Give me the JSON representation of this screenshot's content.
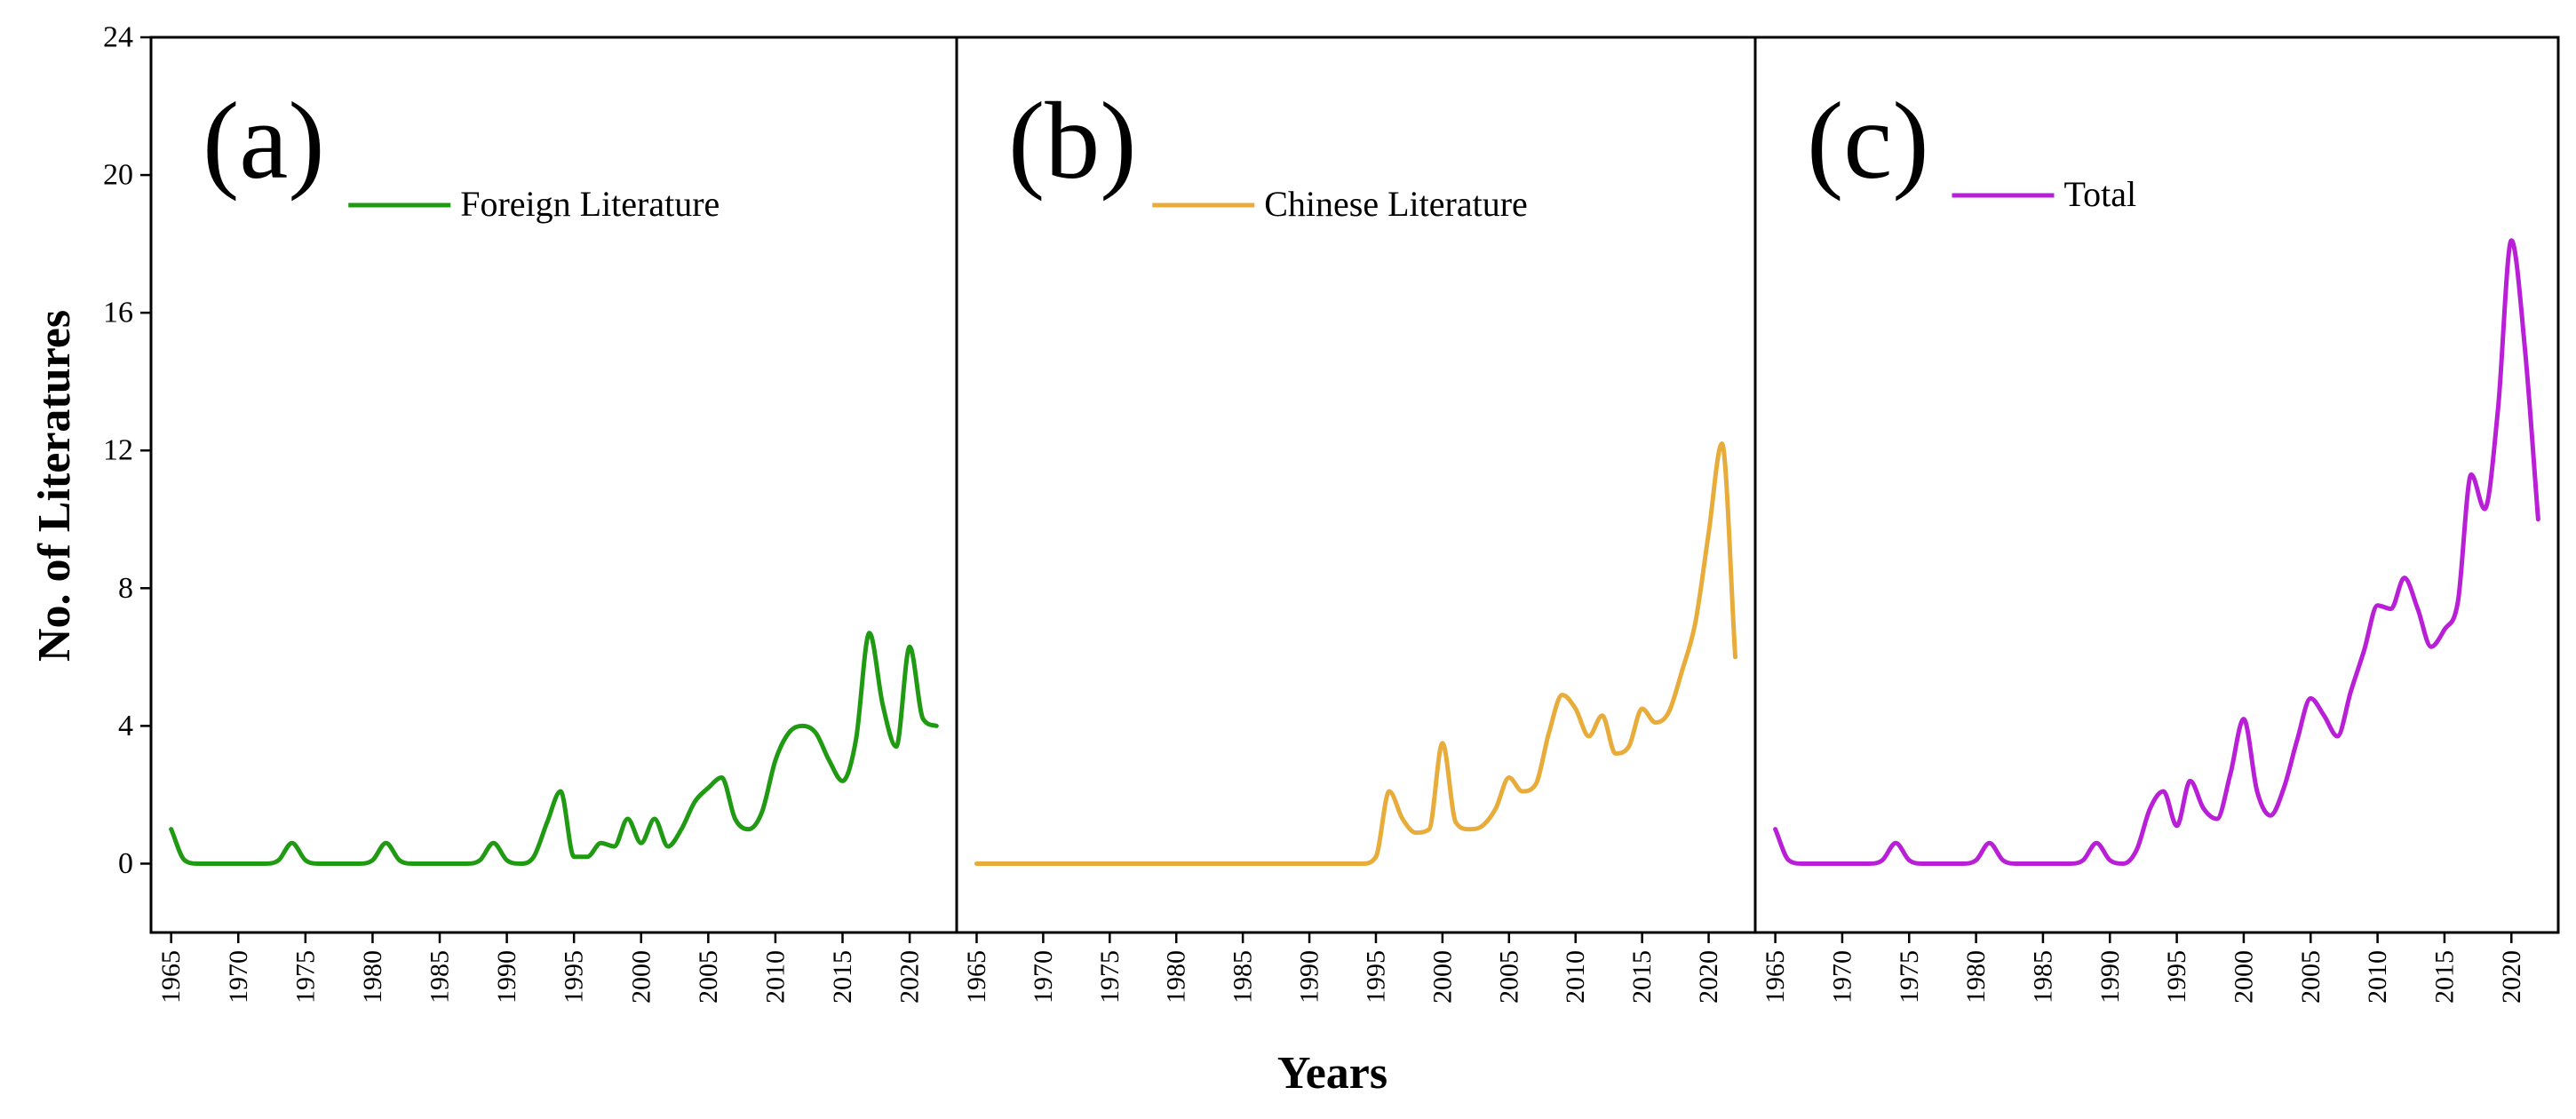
{
  "chart_data": {
    "type": "line",
    "xlabel": "Years",
    "ylabel": "No. of Literatures",
    "ylim": [
      -2,
      24
    ],
    "xlim": [
      1963.5,
      1966.5
    ],
    "yticks": [
      0,
      4,
      8,
      12,
      16,
      20,
      24
    ],
    "xticks": [
      1965,
      1970,
      1975,
      1980,
      1985,
      1990,
      1995,
      2000,
      2005,
      2010,
      2015,
      2020
    ],
    "grid": false,
    "legend_position": "top-center",
    "colors": {
      "a": "#1f9a12",
      "b": "#e8ac3a",
      "c": "#b81fd6"
    },
    "panels": [
      {
        "tag": "(a)",
        "series": [
          {
            "name": "Foreign Literature",
            "x": [
              1965,
              1966,
              1967,
              1968,
              1969,
              1970,
              1971,
              1972,
              1973,
              1974,
              1975,
              1976,
              1977,
              1978,
              1979,
              1980,
              1981,
              1982,
              1983,
              1984,
              1985,
              1986,
              1987,
              1988,
              1989,
              1990,
              1991,
              1992,
              1993,
              1994,
              1995,
              1996,
              1997,
              1998,
              1999,
              2000,
              2001,
              2002,
              2003,
              2004,
              2005,
              2006,
              2007,
              2008,
              2009,
              2010,
              2011,
              2012,
              2013,
              2014,
              2015,
              2016,
              2017,
              2018,
              2019,
              2020,
              2021,
              2022
            ],
            "values": [
              1,
              0.1,
              0,
              0,
              0,
              0,
              0,
              0,
              0.1,
              0.6,
              0.1,
              0,
              0,
              0,
              0,
              0.1,
              0.6,
              0.1,
              0,
              0,
              0,
              0,
              0,
              0.1,
              0.6,
              0.1,
              0,
              0.2,
              1.2,
              2.1,
              0.2,
              0.2,
              0.6,
              0.5,
              1.3,
              0.6,
              1.3,
              0.5,
              1,
              1.8,
              2.2,
              2.5,
              1.3,
              1,
              1.5,
              3,
              3.8,
              4,
              3.8,
              3,
              2.4,
              3.6,
              6.7,
              4.6,
              3.4,
              6.3,
              4.2,
              4
            ]
          }
        ]
      },
      {
        "tag": "(b)",
        "series": [
          {
            "name": "Chinese Literature",
            "x": [
              1965,
              1970,
              1975,
              1980,
              1985,
              1990,
              1994,
              1995,
              1996,
              1997,
              1998,
              1999,
              2000,
              2001,
              2002,
              2003,
              2004,
              2005,
              2006,
              2007,
              2008,
              2009,
              2010,
              2011,
              2012,
              2013,
              2014,
              2015,
              2016,
              2017,
              2018,
              2019,
              2020,
              2021,
              2022
            ],
            "values": [
              0,
              0,
              0,
              0,
              0,
              0,
              0,
              0.2,
              2.1,
              1.3,
              0.9,
              1,
              3.5,
              1.2,
              1,
              1.1,
              1.6,
              2.5,
              2.1,
              2.3,
              3.8,
              4.9,
              4.5,
              3.7,
              4.3,
              3.2,
              3.4,
              4.5,
              4.1,
              4.4,
              5.6,
              7,
              9.6,
              12.2,
              6
            ]
          }
        ]
      },
      {
        "tag": "(c)",
        "series": [
          {
            "name": "Total",
            "x": [
              1965,
              1966,
              1967,
              1968,
              1969,
              1970,
              1971,
              1972,
              1973,
              1974,
              1975,
              1976,
              1977,
              1978,
              1979,
              1980,
              1981,
              1982,
              1983,
              1984,
              1985,
              1986,
              1987,
              1988,
              1989,
              1990,
              1991,
              1992,
              1993,
              1994,
              1995,
              1996,
              1997,
              1998,
              1999,
              2000,
              2001,
              2002,
              2003,
              2004,
              2005,
              2006,
              2007,
              2008,
              2009,
              2010,
              2011,
              2012,
              2013,
              2014,
              2015,
              2016,
              2017,
              2018,
              2019,
              2020,
              2021,
              2022
            ],
            "values": [
              1,
              0.1,
              0,
              0,
              0,
              0,
              0,
              0,
              0.1,
              0.6,
              0.1,
              0,
              0,
              0,
              0,
              0.1,
              0.6,
              0.1,
              0,
              0,
              0,
              0,
              0,
              0.1,
              0.6,
              0.1,
              0,
              0.4,
              1.6,
              2.1,
              1.1,
              2.4,
              1.6,
              1.3,
              2.6,
              4.2,
              2.1,
              1.4,
              2.2,
              3.6,
              4.8,
              4.3,
              3.7,
              5,
              6.2,
              7.5,
              7.4,
              8.3,
              7.4,
              6.3,
              6.8,
              7.6,
              11.3,
              10.3,
              13.2,
              18.1,
              15,
              10
            ]
          }
        ]
      }
    ]
  }
}
